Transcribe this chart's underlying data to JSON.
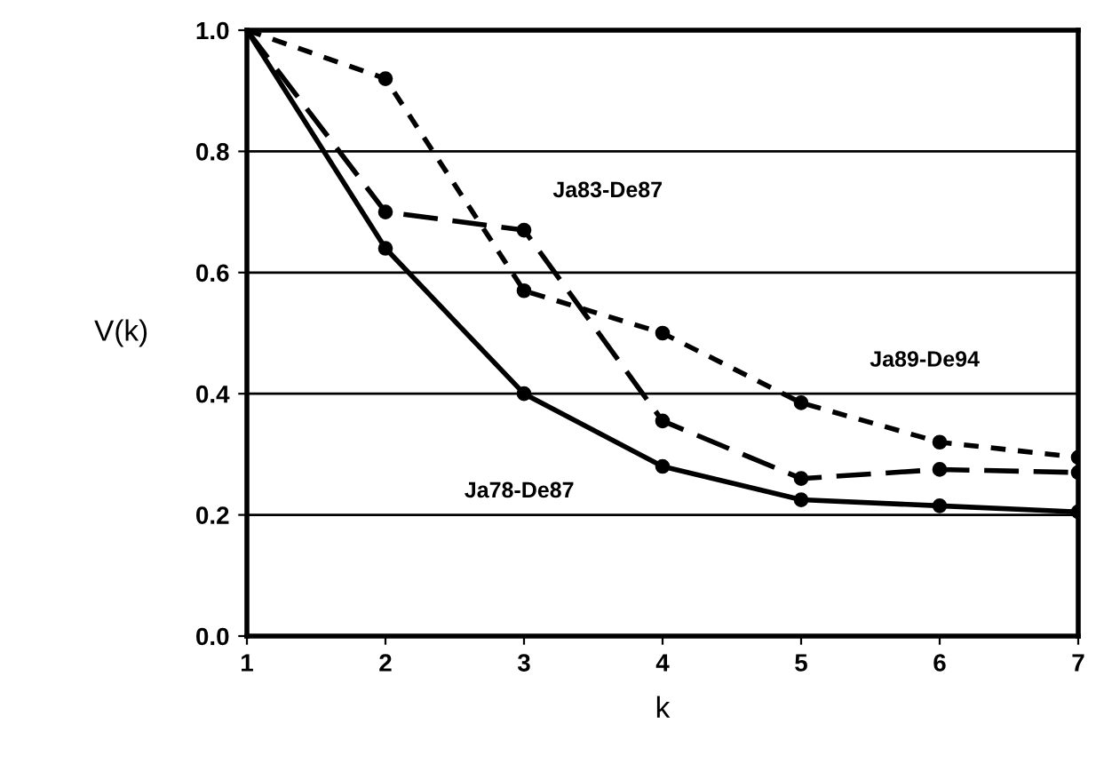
{
  "chart_data": {
    "type": "line",
    "xlabel": "k",
    "ylabel": "V(k)",
    "x": [
      1,
      2,
      3,
      4,
      5,
      6,
      7
    ],
    "series": [
      {
        "name": "Ja78-De87",
        "color": "#000000",
        "line_style": "solid",
        "values": [
          1.0,
          0.64,
          0.4,
          0.28,
          0.225,
          0.215,
          0.205
        ]
      },
      {
        "name": "Ja83-De87",
        "color": "#000000",
        "line_style": "dashed",
        "values": [
          1.0,
          0.7,
          0.67,
          0.355,
          0.26,
          0.275,
          0.27
        ]
      },
      {
        "name": "Ja89-De94",
        "color": "#000000",
        "line_style": "dotted",
        "values": [
          1.0,
          0.92,
          0.57,
          0.5,
          0.385,
          0.32,
          0.295
        ]
      }
    ],
    "xlim": [
      1,
      7
    ],
    "xticks": [
      1,
      2,
      3,
      4,
      5,
      6,
      7
    ],
    "ylim": [
      0.0,
      1.0
    ],
    "yticks": [
      {
        "value": 0.0,
        "label": "0.0"
      },
      {
        "value": 0.2,
        "label": "0.2"
      },
      {
        "value": 0.4,
        "label": "0.4"
      },
      {
        "value": 0.6,
        "label": "0.6"
      },
      {
        "value": 0.8,
        "label": "0.8"
      },
      {
        "value": 1.0,
        "label": "1.0"
      }
    ],
    "grid": "y",
    "marker": "circle"
  }
}
